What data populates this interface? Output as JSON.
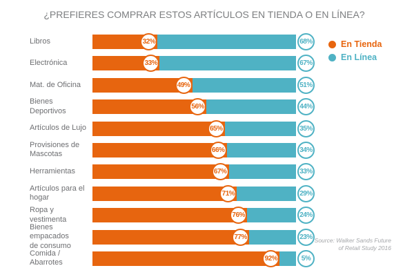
{
  "title": "¿PREFIERES COMPRAR ESTOS ARTÍCULOS EN TIENDA O EN LÍNEA?",
  "legend": {
    "position": "top-right",
    "items": [
      {
        "label": "En Tienda",
        "color": "#e7650f"
      },
      {
        "label": "En Línea",
        "color": "#4fb2c4"
      }
    ]
  },
  "source": {
    "line1": "Source: Walker Sands Future",
    "line2": "of Retail Study 2016"
  },
  "chart_data": {
    "type": "bar",
    "orientation": "horizontal",
    "stacked": true,
    "value_suffix": "%",
    "xlim": [
      0,
      100
    ],
    "grid": false,
    "title": "¿PREFIERES COMPRAR ESTOS ARTÍCULOS EN TIENDA O EN LÍNEA?",
    "categories": [
      "Libros",
      "Electrónica",
      "Mat. de Oficina",
      "Bienes Deportivos",
      "Artículos de Lujo",
      "Provisiones de\nMascotas",
      "Herramientas",
      "Artículos para el\nhogar",
      "Ropa y vestimenta",
      "Bienes empacados\nde consumo",
      "Comida / Abarrotes"
    ],
    "series": [
      {
        "name": "En Tienda",
        "color": "#e7650f",
        "values": [
          32,
          33,
          49,
          56,
          65,
          66,
          67,
          71,
          76,
          77,
          92
        ]
      },
      {
        "name": "En Línea",
        "color": "#4fb2c4",
        "values": [
          68,
          67,
          51,
          44,
          35,
          34,
          33,
          29,
          24,
          23,
          5
        ]
      }
    ]
  }
}
